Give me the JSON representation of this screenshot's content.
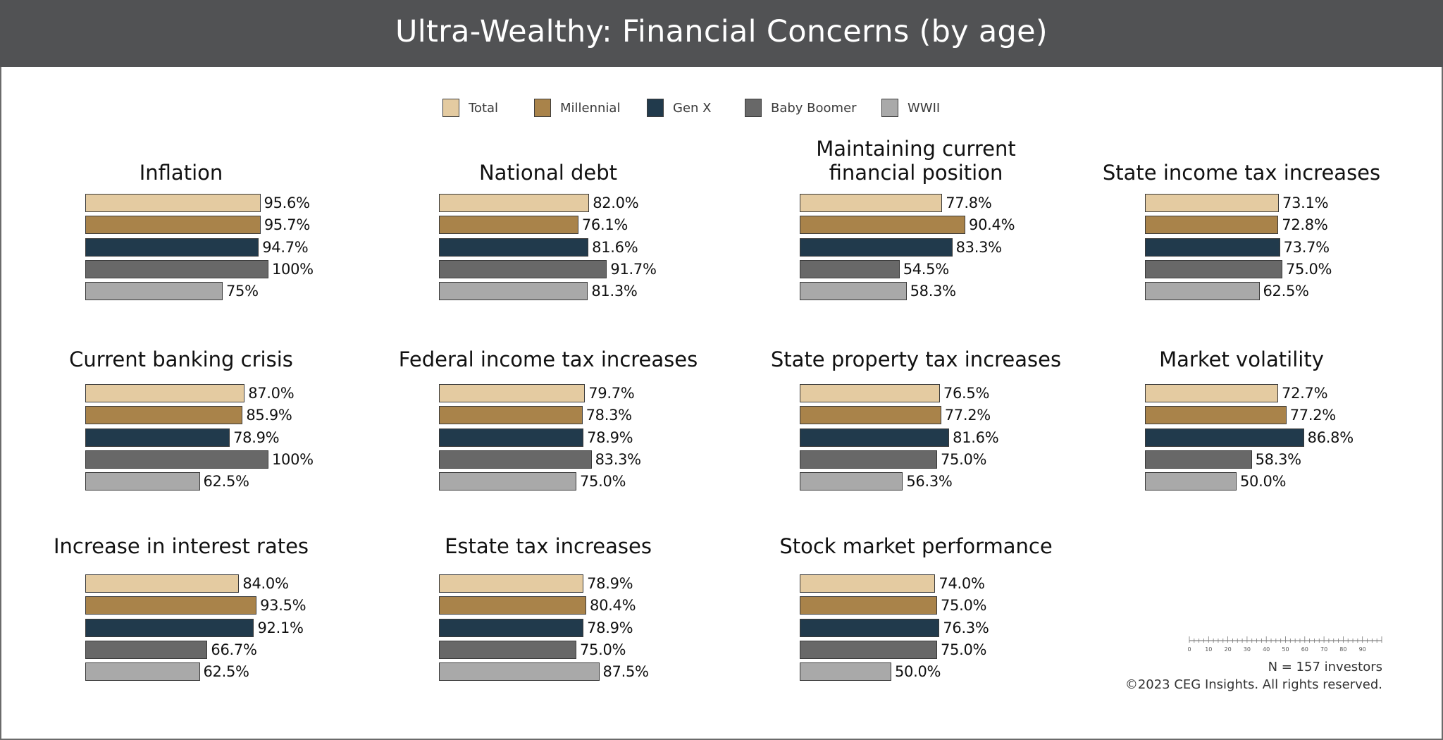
{
  "title": "Ultra-Wealthy: Financial Concerns (by age)",
  "chart_data": {
    "type": "bar",
    "orientation": "horizontal",
    "title": "Ultra-Wealthy: Financial Concerns (by age)",
    "xlim": [
      0,
      100
    ],
    "series_names": [
      "Total",
      "Millennial",
      "Gen X",
      "Baby Boomer",
      "WWII"
    ],
    "colors": [
      "#e4cba1",
      "#a9834a",
      "#213a4c",
      "#686868",
      "#a9a9a9"
    ],
    "panels": [
      {
        "title": [
          "Inflation"
        ],
        "values": [
          95.6,
          95.7,
          94.7,
          100,
          75
        ],
        "labels": [
          "95.6%",
          "95.7%",
          "94.7%",
          "100%",
          "75%"
        ]
      },
      {
        "title": [
          "National debt"
        ],
        "values": [
          82.0,
          76.1,
          81.6,
          91.7,
          81.3
        ],
        "labels": [
          "82.0%",
          "76.1%",
          "81.6%",
          "91.7%",
          "81.3%"
        ]
      },
      {
        "title": [
          "Maintaining current",
          "financial position"
        ],
        "values": [
          77.8,
          90.4,
          83.3,
          54.5,
          58.3
        ],
        "labels": [
          "77.8%",
          "90.4%",
          "83.3%",
          "54.5%",
          "58.3%"
        ]
      },
      {
        "title": [
          "State income tax increases"
        ],
        "values": [
          73.1,
          72.8,
          73.7,
          75.0,
          62.5
        ],
        "labels": [
          "73.1%",
          "72.8%",
          "73.7%",
          "75.0%",
          "62.5%"
        ]
      },
      {
        "title": [
          "Current banking crisis"
        ],
        "values": [
          87.0,
          85.9,
          78.9,
          100,
          62.5
        ],
        "labels": [
          "87.0%",
          "85.9%",
          "78.9%",
          "100%",
          "62.5%"
        ]
      },
      {
        "title": [
          "Federal income tax increases"
        ],
        "values": [
          79.7,
          78.3,
          78.9,
          83.3,
          75.0
        ],
        "labels": [
          "79.7%",
          "78.3%",
          "78.9%",
          "83.3%",
          "75.0%"
        ]
      },
      {
        "title": [
          "State property tax increases"
        ],
        "values": [
          76.5,
          77.2,
          81.6,
          75.0,
          56.3
        ],
        "labels": [
          "76.5%",
          "77.2%",
          "81.6%",
          "75.0%",
          "56.3%"
        ]
      },
      {
        "title": [
          "Market volatility"
        ],
        "values": [
          72.7,
          77.2,
          86.8,
          58.3,
          50.0
        ],
        "labels": [
          "72.7%",
          "77.2%",
          "86.8%",
          "58.3%",
          "50.0%"
        ]
      },
      {
        "title": [
          "Increase in interest rates"
        ],
        "values": [
          84.0,
          93.5,
          92.1,
          66.7,
          62.5
        ],
        "labels": [
          "84.0%",
          "93.5%",
          "92.1%",
          "66.7%",
          "62.5%"
        ]
      },
      {
        "title": [
          "Estate tax increases"
        ],
        "values": [
          78.9,
          80.4,
          78.9,
          75.0,
          87.5
        ],
        "labels": [
          "78.9%",
          "80.4%",
          "78.9%",
          "75.0%",
          "87.5%"
        ]
      },
      {
        "title": [
          "Stock market performance"
        ],
        "values": [
          74.0,
          75.0,
          76.3,
          75.0,
          50.0
        ],
        "labels": [
          "74.0%",
          "75.0%",
          "76.3%",
          "75.0%",
          "50.0%"
        ]
      }
    ],
    "scale_ticks": [
      "0",
      "10",
      "20",
      "30",
      "40",
      "50",
      "60",
      "70",
      "80",
      "90"
    ]
  },
  "notes": {
    "sample": "N = 157 investors",
    "copyright": "©2023 CEG Insights. All rights reserved."
  }
}
